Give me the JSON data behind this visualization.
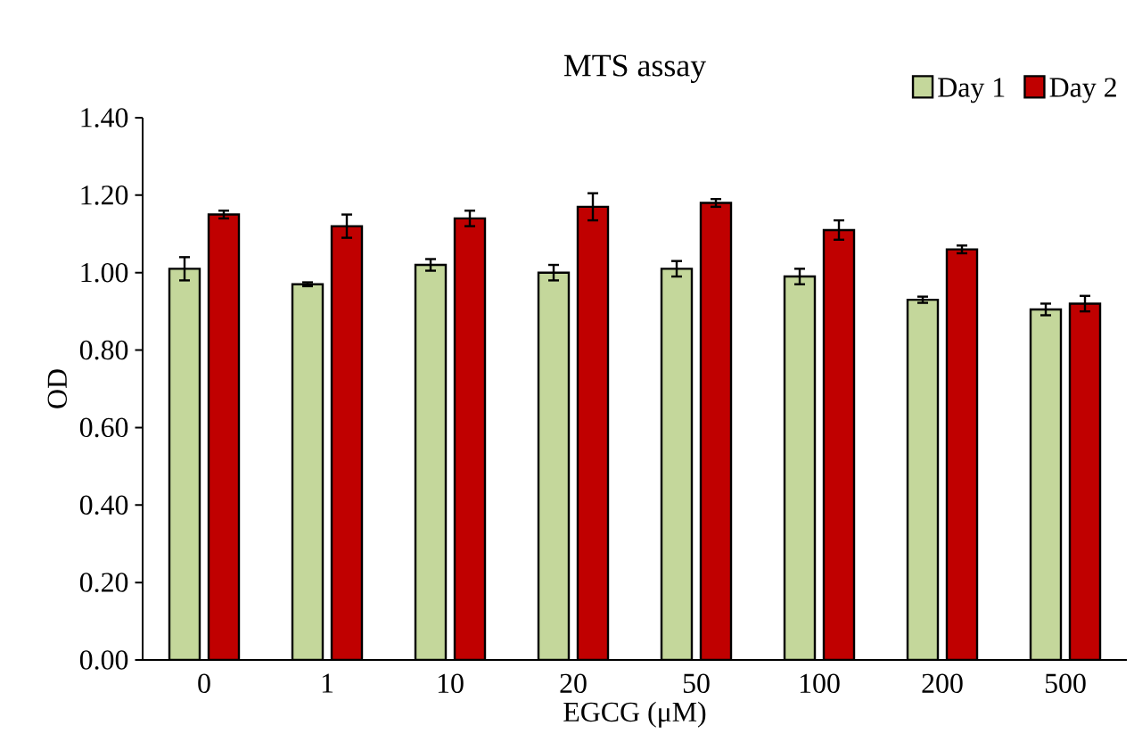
{
  "chart_data": {
    "type": "bar",
    "title": "MTS assay",
    "xlabel": "EGCG (μM)",
    "ylabel": "OD",
    "categories": [
      "0",
      "1",
      "10",
      "20",
      "50",
      "100",
      "200",
      "500"
    ],
    "series": [
      {
        "name": "Day 1",
        "color": "#c4d79b",
        "values": [
          1.01,
          0.97,
          1.02,
          1.0,
          1.01,
          0.99,
          0.93,
          0.905
        ],
        "errors": [
          0.03,
          0.005,
          0.015,
          0.02,
          0.02,
          0.02,
          0.008,
          0.015
        ]
      },
      {
        "name": "Day 2",
        "color": "#c00000",
        "values": [
          1.15,
          1.12,
          1.14,
          1.17,
          1.18,
          1.11,
          1.06,
          0.92
        ],
        "errors": [
          0.01,
          0.03,
          0.02,
          0.035,
          0.01,
          0.025,
          0.01,
          0.02
        ]
      }
    ],
    "ylim": [
      0,
      1.4
    ],
    "yticks": [
      {
        "value": 0,
        "label": "0.00"
      },
      {
        "value": 0.2,
        "label": "0.20"
      },
      {
        "value": 0.4,
        "label": "0.40"
      },
      {
        "value": 0.6,
        "label": "0.60"
      },
      {
        "value": 0.8,
        "label": "0.80"
      },
      {
        "value": 1.0,
        "label": "1.00"
      },
      {
        "value": 1.2,
        "label": "1.20"
      },
      {
        "value": 1.4,
        "label": "1.40"
      }
    ],
    "grid": false,
    "legend": "top right"
  }
}
